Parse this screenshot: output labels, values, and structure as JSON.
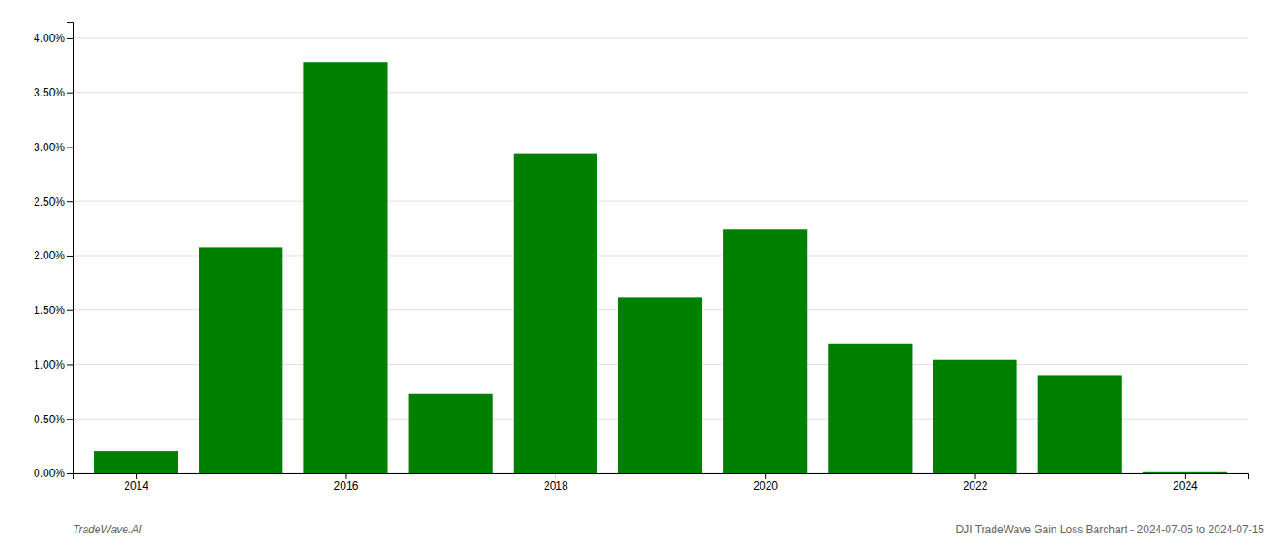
{
  "chart_data": {
    "type": "bar",
    "x": [
      2014,
      2015,
      2016,
      2017,
      2018,
      2019,
      2020,
      2021,
      2022,
      2023,
      2024
    ],
    "values": [
      0.002,
      0.0208,
      0.0378,
      0.0073,
      0.0294,
      0.0162,
      0.0224,
      0.0119,
      0.0104,
      0.009,
      0.0001
    ],
    "color": "#008000",
    "xlim": [
      2013.4,
      2024.6
    ],
    "xticks": [
      2014,
      2016,
      2018,
      2020,
      2022,
      2024
    ],
    "ylim": [
      0,
      0.0415
    ],
    "yticks": [
      {
        "value": 0.0,
        "label": "0.00%"
      },
      {
        "value": 0.005,
        "label": "0.50%"
      },
      {
        "value": 0.01,
        "label": "1.00%"
      },
      {
        "value": 0.015,
        "label": "1.50%"
      },
      {
        "value": 0.02,
        "label": "2.00%"
      },
      {
        "value": 0.025,
        "label": "2.50%"
      },
      {
        "value": 0.03,
        "label": "3.00%"
      },
      {
        "value": 0.035,
        "label": "3.50%"
      },
      {
        "value": 0.04,
        "label": "4.00%"
      }
    ],
    "grid": true,
    "annotations": [
      "TradeWave.AI",
      "DJI TradeWave Gain Loss Barchart - 2024-07-05 to 2024-07-15"
    ]
  }
}
